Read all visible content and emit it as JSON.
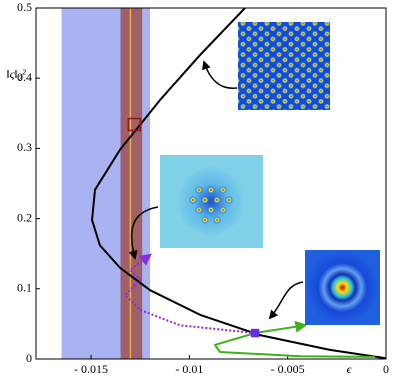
{
  "chart_data": {
    "type": "line",
    "xlabel": "ϵ",
    "ylabel": "‖ς‖₂²",
    "xlim": [
      -0.0178,
      0
    ],
    "ylim": [
      0,
      0.5
    ],
    "xticks": [
      {
        "value": -0.015,
        "label": "- 0.015"
      },
      {
        "value": -0.01,
        "label": "- 0.01"
      },
      {
        "value": -0.005,
        "label": "- 0.005"
      },
      0
    ],
    "yticks": [
      0,
      0.1,
      0.2,
      0.3,
      0.4,
      0.5
    ],
    "bands": [
      {
        "xrange": [
          -0.0165,
          -0.012
        ],
        "color": "#a9b3f2"
      },
      {
        "xrange": [
          -0.0135,
          -0.0124
        ],
        "color": "#a0606a"
      }
    ],
    "vline": {
      "x": -0.013,
      "color": "#e8b040"
    },
    "series": [
      {
        "color": "#000000",
        "style": "solid",
        "x": [
          -0.00717,
          -0.00946,
          -0.01149,
          -0.01353,
          -0.0148,
          -0.01495,
          -0.01455,
          -0.01353,
          -0.012,
          -0.00946,
          -0.00641,
          -0.00285,
          0
        ],
        "values": [
          0.5,
          0.433,
          0.369,
          0.298,
          0.241,
          0.198,
          0.162,
          0.13,
          0.098,
          0.063,
          0.034,
          0.013,
          0.001
        ]
      },
      {
        "color": "#3db01a",
        "style": "solid",
        "x": [
          -0.00056,
          -0.00437,
          -0.00844,
          -0.0087,
          -0.00666,
          -0.00412
        ],
        "values": [
          0.003,
          0.004,
          0.01,
          0.02,
          0.037,
          0.048
        ]
      },
      {
        "color": "#8a2be2",
        "style": "dotted",
        "x": [
          -0.00666,
          -0.01048,
          -0.01251,
          -0.01327,
          -0.01251,
          -0.01302,
          -0.012
        ],
        "values": [
          0.037,
          0.048,
          0.07,
          0.091,
          0.113,
          0.127,
          0.148
        ]
      }
    ],
    "markers": [
      {
        "x": -0.00666,
        "y": 0.037,
        "color": "#6a2bf0",
        "filled": true
      },
      {
        "x": -0.0128,
        "y": 0.334,
        "color": "#8b1a1a",
        "filled": false
      }
    ]
  }
}
